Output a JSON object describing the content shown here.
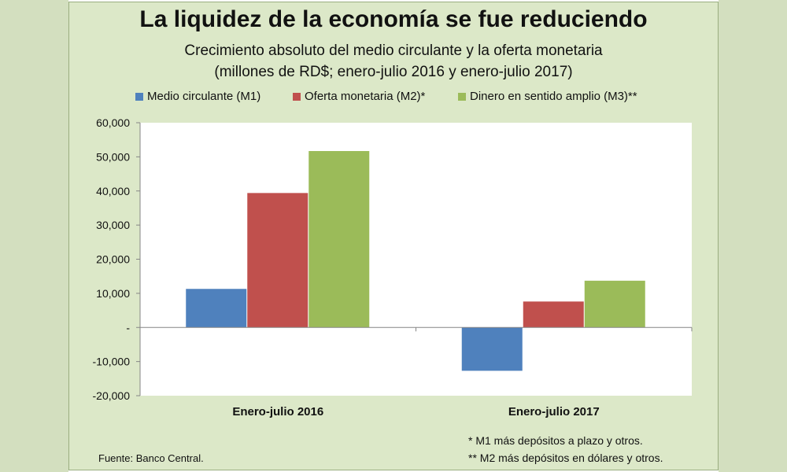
{
  "chart_data": {
    "type": "bar",
    "title": "La liquidez de la economía se fue reduciendo",
    "subtitle_line1": "Crecimiento absoluto del medio circulante y la oferta monetaria",
    "subtitle_line2": "(millones de RD$; enero-julio 2016 y enero-julio 2017)",
    "categories": [
      "Enero-julio 2016",
      "Enero-julio 2017"
    ],
    "series": [
      {
        "name": "Medio circulante (M1)",
        "color": "#4f81bd",
        "values": [
          11300,
          -12700
        ]
      },
      {
        "name": "Oferta monetaria (M2)*",
        "color": "#c0504d",
        "values": [
          39400,
          7600
        ]
      },
      {
        "name": "Dinero en sentido amplio (M3)**",
        "color": "#9bbb59",
        "values": [
          51700,
          13700
        ]
      }
    ],
    "ylim": [
      -20000,
      60000
    ],
    "yticks": [
      60000,
      50000,
      40000,
      30000,
      20000,
      10000,
      0,
      -10000,
      -20000
    ],
    "ytick_labels": [
      "60,000",
      "50,000",
      "40,000",
      "30,000",
      "20,000",
      "10,000",
      "-",
      "-10,000",
      "-20,000"
    ],
    "legend_position": "top",
    "grid": false
  },
  "notes": {
    "source": "Fuente: Banco Central.",
    "note1": "*   M1 más depósitos a plazo y otros.",
    "note2": "**  M2 más depósitos en dólares y otros."
  },
  "colors": {
    "panel_bg": "#dce8c8",
    "plot_bg": "#ffffff"
  }
}
